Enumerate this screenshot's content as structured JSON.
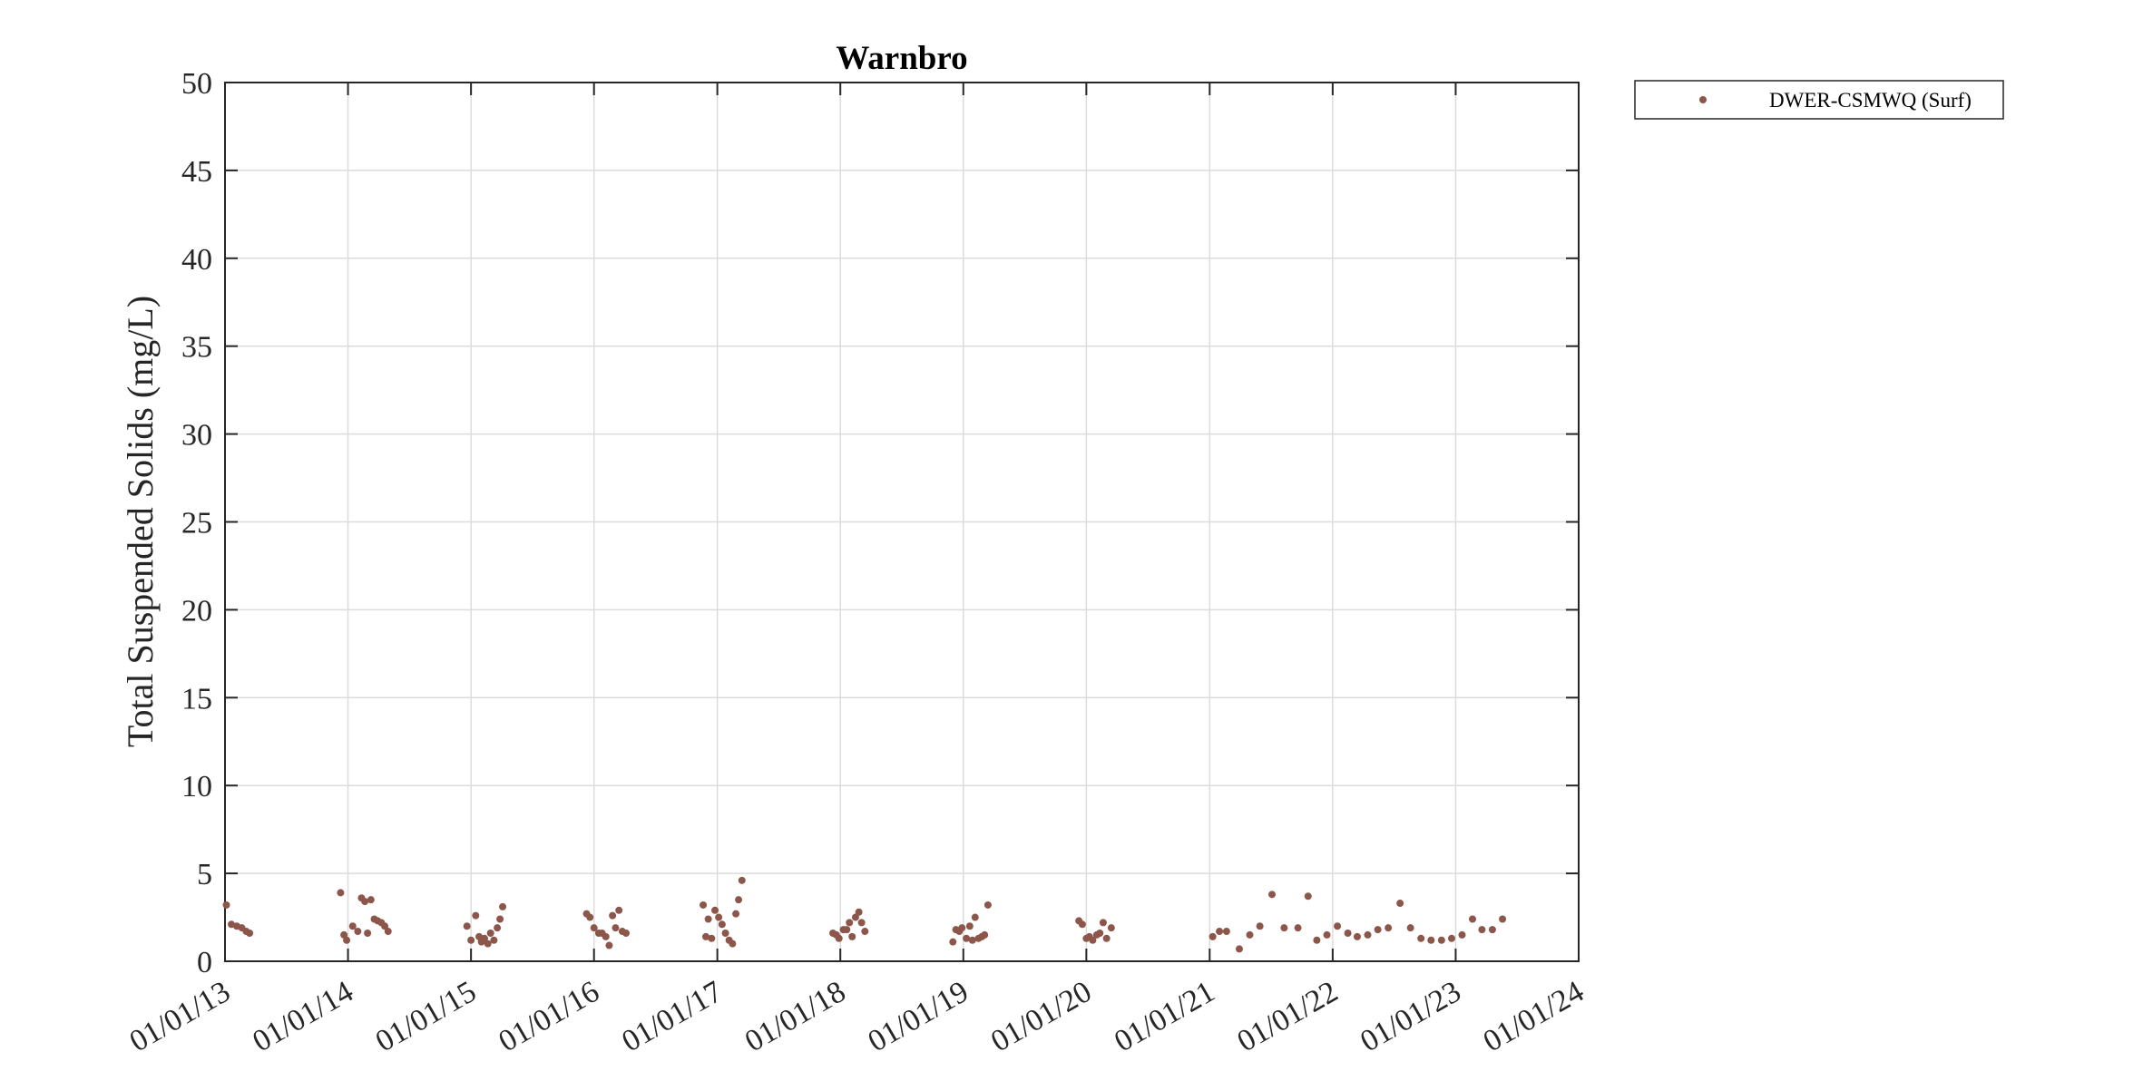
{
  "chart_data": {
    "type": "scatter",
    "title": "Warnbro",
    "xlabel": "",
    "ylabel": "Total Suspended Solids (mg/L)",
    "ylim": [
      0,
      50
    ],
    "yticks": [
      "0",
      "5",
      "10",
      "15",
      "20",
      "25",
      "30",
      "35",
      "40",
      "45",
      "50"
    ],
    "xlim": [
      "2013-01-01",
      "2024-01-01"
    ],
    "xticks": [
      "01/01/13",
      "01/01/14",
      "01/01/15",
      "01/01/16",
      "01/01/17",
      "01/01/18",
      "01/01/19",
      "01/01/20",
      "01/01/21",
      "01/01/22",
      "01/01/23",
      "01/01/24"
    ],
    "grid": true,
    "legend_position": "outside top-right",
    "series": [
      {
        "name": "DWER-CSMWQ (Surf)",
        "color": "#8c564b",
        "x": [
          "2013-01-05",
          "2013-01-20",
          "2013-02-05",
          "2013-02-20",
          "2013-03-05",
          "2013-03-15",
          "2013-12-10",
          "2013-12-20",
          "2013-12-28",
          "2014-01-15",
          "2014-01-30",
          "2014-02-10",
          "2014-02-20",
          "2014-02-28",
          "2014-03-10",
          "2014-03-20",
          "2014-03-30",
          "2014-04-10",
          "2014-04-20",
          "2014-04-30",
          "2014-12-20",
          "2015-01-01",
          "2015-01-15",
          "2015-01-25",
          "2015-02-01",
          "2015-02-10",
          "2015-02-20",
          "2015-02-28",
          "2015-03-10",
          "2015-03-20",
          "2015-03-28",
          "2015-04-05",
          "2015-12-10",
          "2015-12-20",
          "2016-01-01",
          "2016-01-15",
          "2016-01-25",
          "2016-02-05",
          "2016-02-15",
          "2016-02-25",
          "2016-03-05",
          "2016-03-15",
          "2016-03-25",
          "2016-04-05",
          "2016-11-20",
          "2016-11-28",
          "2016-12-05",
          "2016-12-15",
          "2016-12-25",
          "2017-01-05",
          "2017-01-15",
          "2017-01-25",
          "2017-02-05",
          "2017-02-15",
          "2017-02-25",
          "2017-03-05",
          "2017-03-15",
          "2017-12-10",
          "2017-12-20",
          "2017-12-28",
          "2018-01-10",
          "2018-01-20",
          "2018-01-28",
          "2018-02-05",
          "2018-02-15",
          "2018-02-25",
          "2018-03-05",
          "2018-03-15",
          "2018-12-01",
          "2018-12-10",
          "2018-12-20",
          "2018-12-28",
          "2019-01-10",
          "2019-01-20",
          "2019-01-28",
          "2019-02-05",
          "2019-02-15",
          "2019-02-25",
          "2019-03-05",
          "2019-03-15",
          "2019-12-10",
          "2019-12-20",
          "2020-01-01",
          "2020-01-10",
          "2020-01-20",
          "2020-02-01",
          "2020-02-10",
          "2020-02-20",
          "2020-03-01",
          "2020-03-15",
          "2021-01-10",
          "2021-01-30",
          "2021-02-20",
          "2021-03-30",
          "2021-04-30",
          "2021-05-30",
          "2021-07-05",
          "2021-08-10",
          "2021-09-20",
          "2021-10-20",
          "2021-11-15",
          "2021-12-15",
          "2022-01-15",
          "2022-02-15",
          "2022-03-15",
          "2022-04-15",
          "2022-05-15",
          "2022-06-15",
          "2022-07-20",
          "2022-08-20",
          "2022-09-20",
          "2022-10-20",
          "2022-11-20",
          "2022-12-20",
          "2023-01-20",
          "2023-02-20",
          "2023-03-20",
          "2023-04-20",
          "2023-05-20"
        ],
        "y": [
          3.2,
          2.1,
          2.0,
          1.9,
          1.7,
          1.6,
          3.9,
          1.5,
          1.2,
          2.0,
          1.7,
          3.6,
          3.4,
          1.6,
          3.5,
          2.4,
          2.3,
          2.2,
          2.0,
          1.7,
          2.0,
          1.2,
          2.6,
          1.4,
          1.1,
          1.3,
          1.0,
          1.6,
          1.2,
          1.9,
          2.4,
          3.1,
          2.7,
          2.5,
          1.9,
          1.6,
          1.6,
          1.4,
          0.9,
          2.6,
          1.9,
          2.9,
          1.7,
          1.6,
          3.2,
          1.4,
          2.4,
          1.3,
          2.9,
          2.5,
          2.1,
          1.6,
          1.2,
          1.0,
          2.7,
          3.5,
          4.6,
          1.6,
          1.5,
          1.3,
          1.8,
          1.8,
          2.2,
          1.4,
          2.5,
          2.8,
          2.2,
          1.7,
          1.1,
          1.8,
          1.7,
          1.9,
          1.3,
          2.0,
          1.2,
          2.5,
          1.3,
          1.4,
          1.5,
          3.2,
          2.3,
          2.1,
          1.3,
          1.4,
          1.2,
          1.5,
          1.6,
          2.2,
          1.3,
          1.9,
          1.4,
          1.7,
          1.7,
          0.7,
          1.5,
          2.0,
          3.8,
          1.9,
          1.9,
          3.7,
          1.2,
          1.5,
          2.0,
          1.6,
          1.4,
          1.5,
          1.8,
          1.9,
          3.3,
          1.9,
          1.3,
          1.2,
          1.2,
          1.3,
          1.5,
          2.4,
          1.8,
          1.8,
          2.4
        ]
      }
    ]
  }
}
